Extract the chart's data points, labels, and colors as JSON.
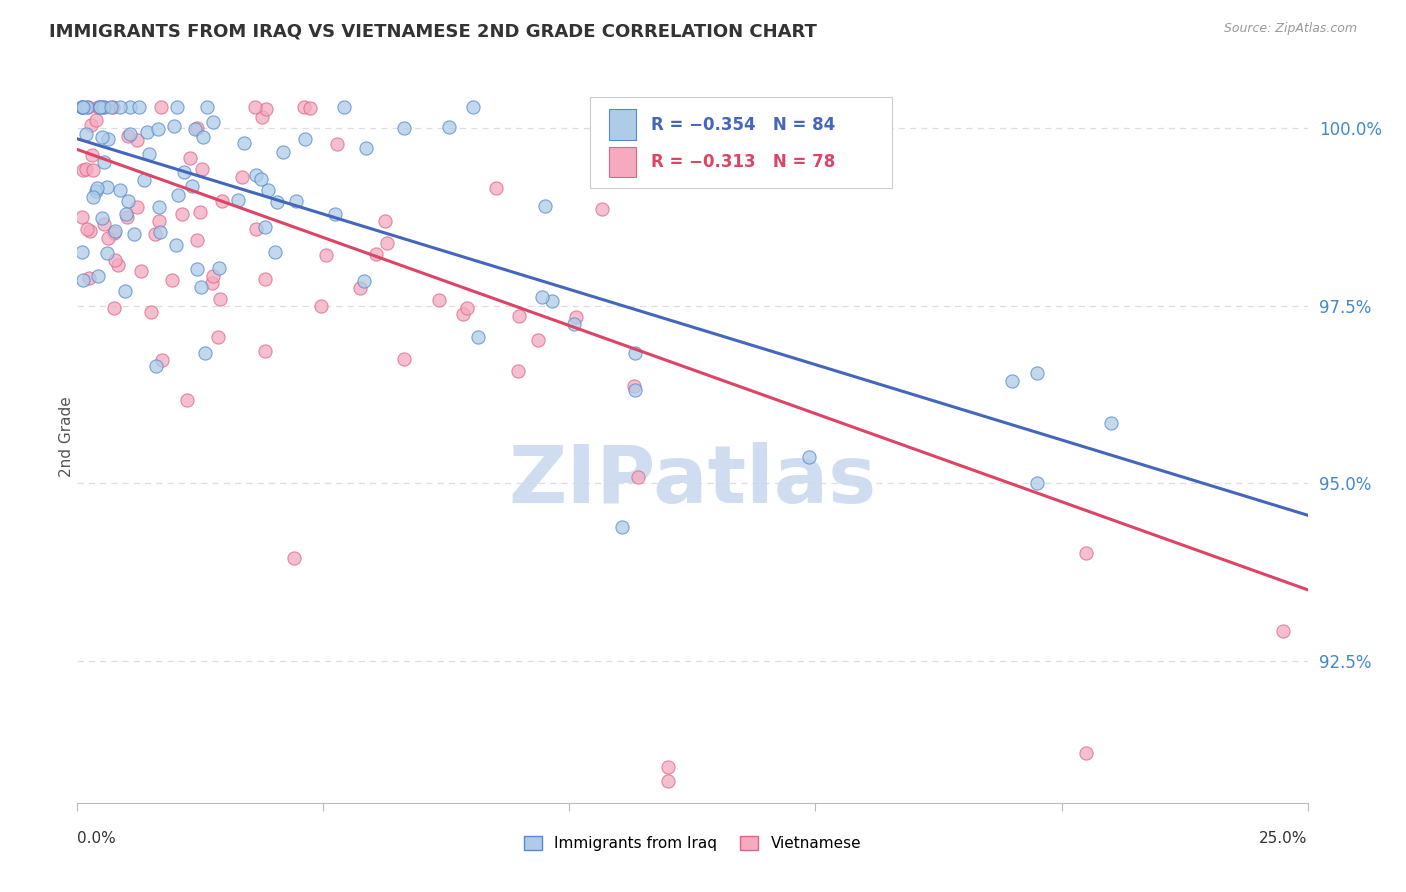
{
  "title": "IMMIGRANTS FROM IRAQ VS VIETNAMESE 2ND GRADE CORRELATION CHART",
  "source": "Source: ZipAtlas.com",
  "ylabel": "2nd Grade",
  "ytick_labels": [
    "100.0%",
    "97.5%",
    "95.0%",
    "92.5%"
  ],
  "ytick_values": [
    1.0,
    0.975,
    0.95,
    0.925
  ],
  "xmin": 0.0,
  "xmax": 0.25,
  "ymin": 0.905,
  "ymax": 1.008,
  "legend_label1": "Immigrants from Iraq",
  "legend_label2": "Vietnamese",
  "color_blue_fill": "#AECCE8",
  "color_blue_edge": "#5588CC",
  "color_pink_fill": "#F4AABF",
  "color_pink_edge": "#DD6688",
  "color_blue_line": "#4466BB",
  "color_pink_line": "#DD4466",
  "watermark_color": "#C8D8EE",
  "grid_color": "#DDDDDD",
  "blue_line_y0": 0.9985,
  "blue_line_y1": 0.9455,
  "pink_line_y0": 0.997,
  "pink_line_y1": 0.935
}
